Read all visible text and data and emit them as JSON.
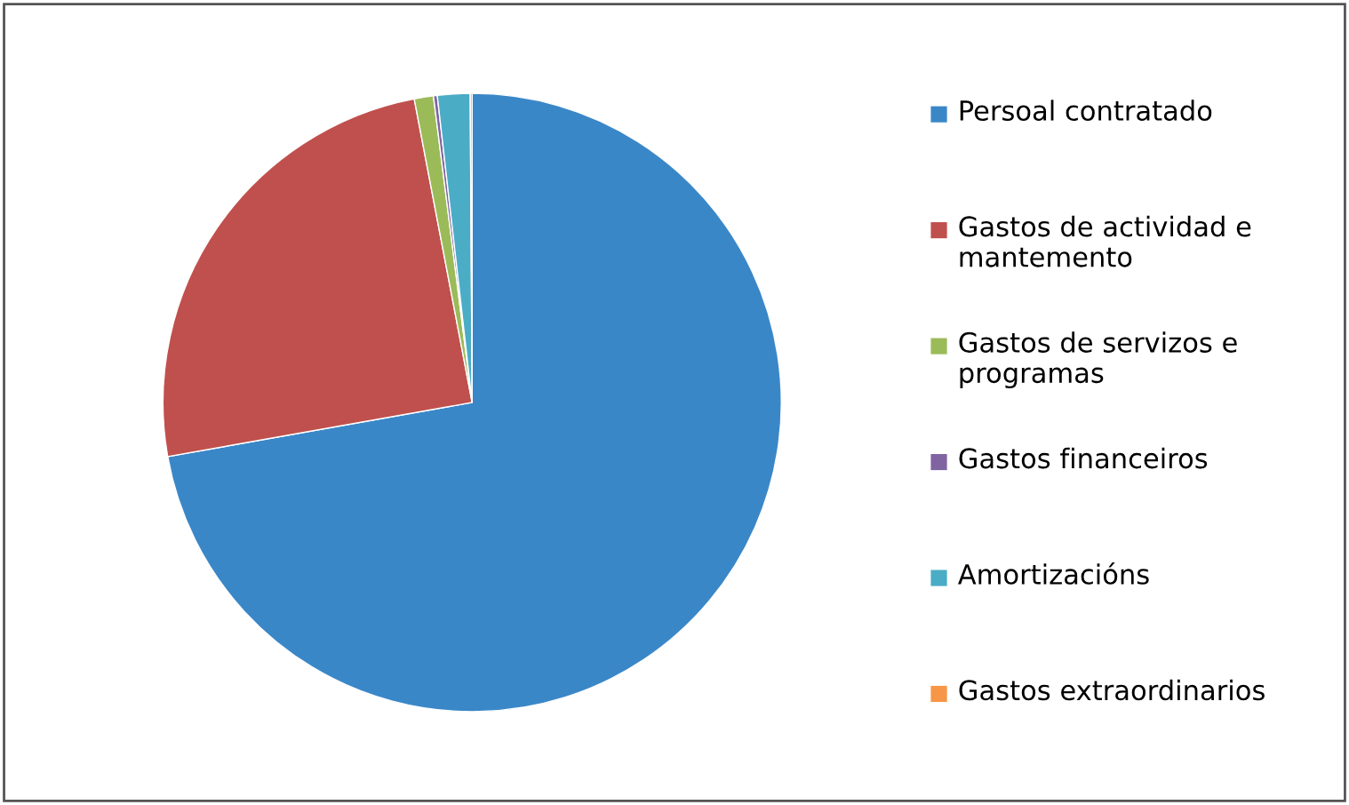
{
  "chart_data": {
    "type": "pie",
    "categories": [
      "Persoal contratado",
      "Gastos de actividad e mantemento",
      "Gastos de servizos e programas",
      "Gastos financeiros",
      "Amortizacións",
      "Gastos extraordinarios"
    ],
    "values": [
      72.2,
      24.8,
      1.0,
      0.2,
      1.7,
      0.1
    ],
    "colors": [
      "#3a87c8",
      "#c0504d",
      "#9bbb59",
      "#8064a2",
      "#4bacc6",
      "#f79646"
    ],
    "legend": "right"
  }
}
